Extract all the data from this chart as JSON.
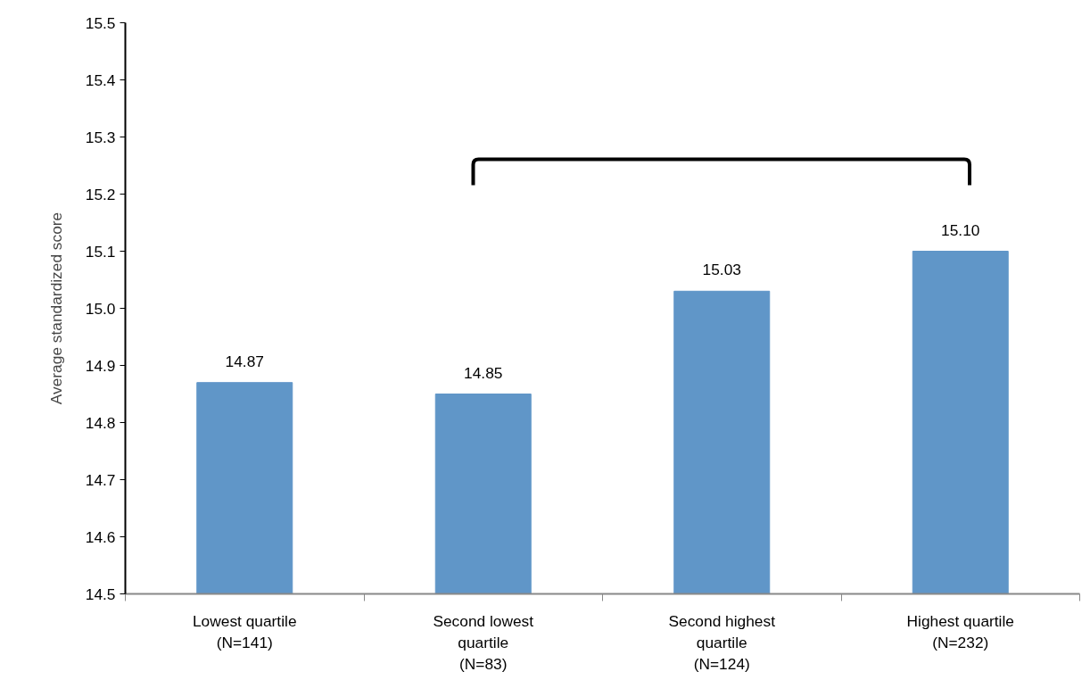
{
  "chart_data": {
    "type": "bar",
    "ylabel": "Average standardized score",
    "categories": [
      "Lowest quartile\n(N=141)",
      "Second lowest\nquartile\n(N=83)",
      "Second highest\nquartile\n(N=124)",
      "Highest quartile\n(N=232)"
    ],
    "values": [
      14.87,
      14.85,
      15.03,
      15.1
    ],
    "value_labels": [
      "14.87",
      "14.85",
      "15.03",
      "15.10"
    ],
    "color": "#6096c8",
    "ylim": [
      14.5,
      15.5
    ],
    "yticks": [
      14.5,
      14.6,
      14.7,
      14.8,
      14.9,
      {
        "value": 15,
        "label": "15.0"
      },
      15.1,
      15.2,
      15.3,
      15.4,
      15.5
    ],
    "grid": false
  }
}
